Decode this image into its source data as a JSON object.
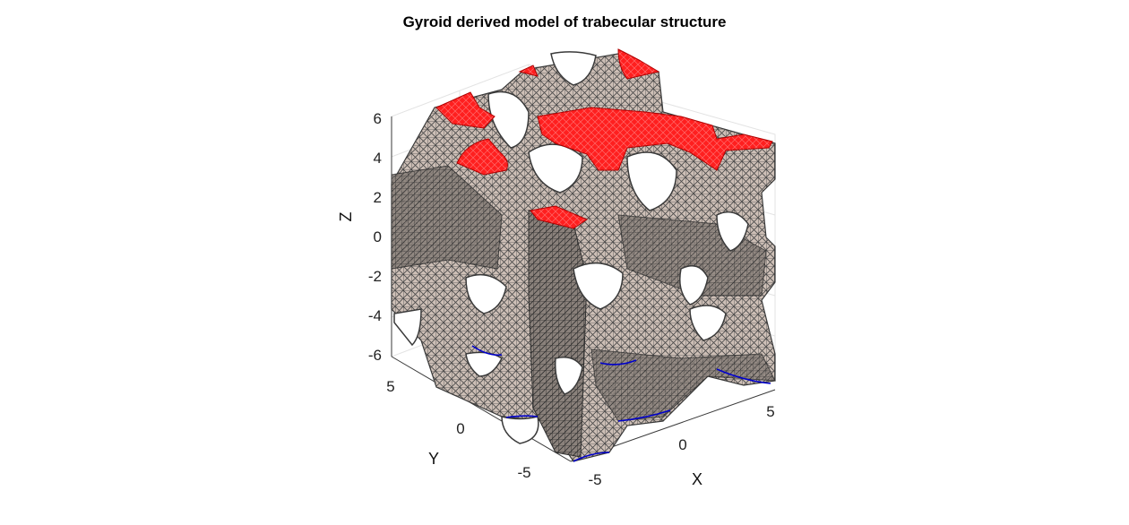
{
  "title": "Gyroid derived model of trabecular structure",
  "axes": {
    "x": {
      "label": "X",
      "ticks": [
        "-5",
        "0",
        "5"
      ]
    },
    "y": {
      "label": "Y",
      "ticks": [
        "5",
        "0",
        "-5"
      ]
    },
    "z": {
      "label": "Z",
      "ticks": [
        "6",
        "4",
        "2",
        "0",
        "-2",
        "-4",
        "-6"
      ]
    }
  },
  "colors": {
    "mesh_face": "#c8bbb3",
    "mesh_edge": "#3a3a3a",
    "top_cap": "#ff2020",
    "bottom_edge": "#0000cc",
    "grid": "#e6e6e6"
  }
}
